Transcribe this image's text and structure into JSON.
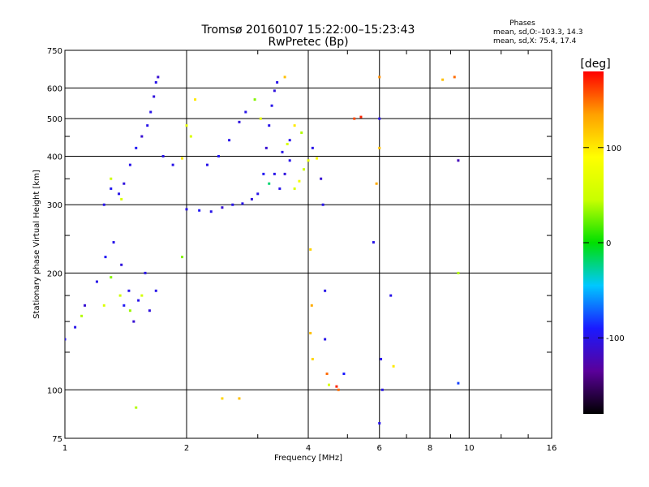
{
  "chart_data": {
    "type": "scatter",
    "title": "Tromsø 20160107 15:22:00–15:23:43",
    "subtitle": "RwPretec (Bp)",
    "xlabel": "Frequency [MHz]",
    "ylabel": "Stationary phase Virtual Height [km]",
    "x_scale": "log",
    "y_scale": "log",
    "xlim": [
      1,
      16
    ],
    "ylim": [
      75,
      750
    ],
    "x_ticks": [
      1,
      2,
      4,
      6,
      8,
      10,
      16
    ],
    "y_ticks": [
      75,
      100,
      200,
      300,
      400,
      500,
      600,
      750
    ],
    "grid": true,
    "phases_box": {
      "title": "Phases",
      "line_o": "mean, sd,O:–103.3, 14.3",
      "line_x": "mean, sd,X:  75.4, 17.4"
    },
    "colorbar": {
      "label": "[deg]",
      "range": [
        -180,
        180
      ],
      "ticks": [
        100,
        0,
        -100
      ],
      "colors": [
        "#000000",
        "#5a009a",
        "#1a1aff",
        "#00c8ff",
        "#00e000",
        "#c8ff00",
        "#ffff00",
        "#ffa000",
        "#ff0000"
      ]
    },
    "series": [
      {
        "points": [
          [
            1.0,
            135,
            -100
          ],
          [
            1.06,
            145,
            -100
          ],
          [
            1.12,
            165,
            -110
          ],
          [
            1.2,
            190,
            -100
          ],
          [
            1.26,
            220,
            -95
          ],
          [
            1.32,
            240,
            -100
          ],
          [
            1.38,
            210,
            -105
          ],
          [
            1.4,
            165,
            -95
          ],
          [
            1.44,
            180,
            -100
          ],
          [
            1.48,
            150,
            -110
          ],
          [
            1.52,
            170,
            -100
          ],
          [
            1.58,
            200,
            -100
          ],
          [
            1.62,
            160,
            -105
          ],
          [
            1.68,
            180,
            -100
          ],
          [
            1.1,
            155,
            40
          ],
          [
            1.25,
            165,
            60
          ],
          [
            1.3,
            195,
            30
          ],
          [
            1.37,
            175,
            50
          ],
          [
            1.45,
            160,
            35
          ],
          [
            1.55,
            175,
            55
          ],
          [
            1.25,
            300,
            -100
          ],
          [
            1.3,
            330,
            -95
          ],
          [
            1.36,
            320,
            -100
          ],
          [
            1.4,
            340,
            -105
          ],
          [
            1.45,
            380,
            -100
          ],
          [
            1.5,
            420,
            -95
          ],
          [
            1.55,
            450,
            -110
          ],
          [
            1.6,
            480,
            -100
          ],
          [
            1.63,
            520,
            -100
          ],
          [
            1.66,
            570,
            -105
          ],
          [
            1.68,
            620,
            -100
          ],
          [
            1.7,
            640,
            -110
          ],
          [
            1.75,
            400,
            -100
          ],
          [
            1.85,
            380,
            -100
          ],
          [
            1.3,
            350,
            50
          ],
          [
            1.38,
            310,
            60
          ],
          [
            1.95,
            395,
            100
          ],
          [
            2.0,
            480,
            70
          ],
          [
            2.05,
            450,
            60
          ],
          [
            2.25,
            380,
            -100
          ],
          [
            2.4,
            400,
            -95
          ],
          [
            2.55,
            440,
            -100
          ],
          [
            2.7,
            490,
            -105
          ],
          [
            2.8,
            520,
            -100
          ],
          [
            2.0,
            292,
            -100
          ],
          [
            2.15,
            290,
            -95
          ],
          [
            2.3,
            288,
            -100
          ],
          [
            2.45,
            295,
            -110
          ],
          [
            2.6,
            300,
            -100
          ],
          [
            2.75,
            302,
            -100
          ],
          [
            2.9,
            310,
            -105
          ],
          [
            3.0,
            320,
            -100
          ],
          [
            3.1,
            360,
            -95
          ],
          [
            3.15,
            420,
            -110
          ],
          [
            3.2,
            480,
            -100
          ],
          [
            3.25,
            540,
            -100
          ],
          [
            3.3,
            590,
            -105
          ],
          [
            3.35,
            620,
            -100
          ],
          [
            2.95,
            560,
            30
          ],
          [
            3.05,
            500,
            70
          ],
          [
            3.2,
            340,
            -20
          ],
          [
            3.4,
            330,
            -100
          ],
          [
            3.5,
            360,
            -105
          ],
          [
            3.6,
            390,
            -100
          ],
          [
            3.7,
            330,
            60
          ],
          [
            3.8,
            345,
            80
          ],
          [
            3.9,
            370,
            50
          ],
          [
            4.0,
            390,
            70
          ],
          [
            4.1,
            420,
            -100
          ],
          [
            4.2,
            395,
            90
          ],
          [
            3.7,
            480,
            100
          ],
          [
            3.55,
            430,
            60
          ],
          [
            3.85,
            460,
            40
          ],
          [
            3.3,
            360,
            -100
          ],
          [
            3.45,
            410,
            -100
          ],
          [
            3.6,
            440,
            -100
          ],
          [
            3.5,
            640,
            120
          ],
          [
            4.05,
            230,
            110
          ],
          [
            4.08,
            165,
            130
          ],
          [
            4.05,
            140,
            120
          ],
          [
            4.1,
            120,
            110
          ],
          [
            4.3,
            350,
            -110
          ],
          [
            4.35,
            300,
            -100
          ],
          [
            4.4,
            180,
            -100
          ],
          [
            4.4,
            135,
            -100
          ],
          [
            4.45,
            110,
            150
          ],
          [
            4.5,
            103,
            60
          ],
          [
            4.7,
            102,
            170
          ],
          [
            4.75,
            100,
            150
          ],
          [
            4.9,
            110,
            -90
          ],
          [
            5.2,
            500,
            160
          ],
          [
            5.4,
            505,
            170
          ],
          [
            5.8,
            240,
            -100
          ],
          [
            5.9,
            340,
            130
          ],
          [
            6.0,
            640,
            140
          ],
          [
            6.0,
            500,
            -100
          ],
          [
            6.0,
            420,
            120
          ],
          [
            6.05,
            120,
            -100
          ],
          [
            6.1,
            100,
            -100
          ],
          [
            6.0,
            82,
            -100
          ],
          [
            6.4,
            175,
            -100
          ],
          [
            6.5,
            115,
            100
          ],
          [
            8.6,
            630,
            120
          ],
          [
            9.2,
            640,
            150
          ],
          [
            9.4,
            390,
            -120
          ],
          [
            9.4,
            200,
            40
          ],
          [
            9.4,
            104,
            -80
          ],
          [
            2.45,
            95,
            110
          ],
          [
            2.7,
            95,
            120
          ],
          [
            1.5,
            90,
            40
          ],
          [
            2.1,
            560,
            100
          ],
          [
            1.95,
            220,
            30
          ]
        ]
      }
    ]
  }
}
